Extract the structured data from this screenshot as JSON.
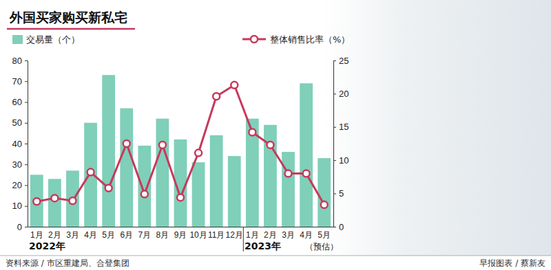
{
  "chart_data": {
    "type": "bar",
    "title": "外国买家购买新私宅",
    "categories": [
      "1月",
      "2月",
      "3月",
      "4月",
      "5月",
      "6月",
      "7月",
      "8月",
      "9月",
      "10月",
      "11月",
      "12月",
      "1月",
      "2月",
      "3月",
      "4月",
      "5月"
    ],
    "x_groups": [
      {
        "label": "2022年",
        "size": 12
      },
      {
        "label": "2023年",
        "size": 5
      }
    ],
    "annotations": [
      "（预估）"
    ],
    "series": [
      {
        "name": "交易量（个）",
        "type": "bar",
        "color": "#7fcfb9",
        "values": [
          25,
          23,
          27,
          50,
          73,
          57,
          39,
          52,
          42,
          31,
          44,
          34,
          52,
          49,
          36,
          69,
          33
        ]
      },
      {
        "name": "整体销售比率（%）",
        "type": "line",
        "axis": "y2",
        "color": "#c8385c",
        "marker": "circle",
        "values": [
          3.8,
          4.3,
          3.9,
          8.2,
          5.8,
          12.5,
          4.9,
          12.3,
          4.4,
          11.1,
          19.6,
          21.3,
          14.2,
          12.3,
          8.0,
          8.0,
          3.3
        ]
      }
    ],
    "ylim": [
      0,
      80
    ],
    "yticks": [
      0,
      10,
      20,
      30,
      40,
      50,
      60,
      70,
      80
    ],
    "y2lim": [
      0,
      25
    ],
    "y2ticks": [
      0,
      5,
      10,
      15,
      20,
      25
    ],
    "grid": false,
    "legend": "top",
    "source": "资料来源 / 市区重建局、合登集团",
    "credit": "早报图表 / 蔡新友"
  }
}
